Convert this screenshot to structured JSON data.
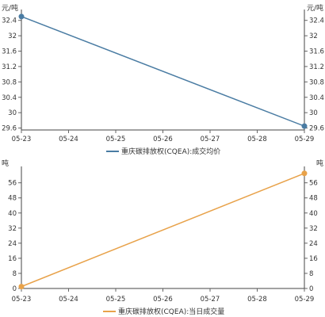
{
  "chart_data": [
    {
      "type": "line",
      "x": [
        "05-23",
        "05-24",
        "05-25",
        "05-26",
        "05-27",
        "05-28",
        "05-29"
      ],
      "series": [
        {
          "name": "重庆碳排放权(CQEA):成交均价",
          "color": "#4a7ca3",
          "points": [
            {
              "x": "05-23",
              "y": 32.5
            },
            {
              "x": "05-29",
              "y": 29.65
            }
          ]
        }
      ],
      "ylabel_left": "元/吨",
      "ylabel_right": "元/吨",
      "yticks": [
        "29.6",
        "30",
        "30.4",
        "30.8",
        "31.2",
        "31.6",
        "32",
        "32.4"
      ],
      "ylim": [
        29.55,
        32.6
      ],
      "grid": false,
      "legend_position": "bottom-center"
    },
    {
      "type": "line",
      "x": [
        "05-23",
        "05-24",
        "05-25",
        "05-26",
        "05-27",
        "05-28",
        "05-29"
      ],
      "series": [
        {
          "name": "重庆碳排放权(CQEA):当日成交量",
          "color": "#e8a24a",
          "points": [
            {
              "x": "05-23",
              "y": 1
            },
            {
              "x": "05-29",
              "y": 61
            }
          ]
        }
      ],
      "ylabel_left": "吨",
      "ylabel_right": "吨",
      "yticks": [
        "0",
        "8",
        "16",
        "24",
        "32",
        "40",
        "48",
        "56"
      ],
      "ylim": [
        0,
        63
      ],
      "grid": false,
      "legend_position": "bottom-center"
    }
  ]
}
